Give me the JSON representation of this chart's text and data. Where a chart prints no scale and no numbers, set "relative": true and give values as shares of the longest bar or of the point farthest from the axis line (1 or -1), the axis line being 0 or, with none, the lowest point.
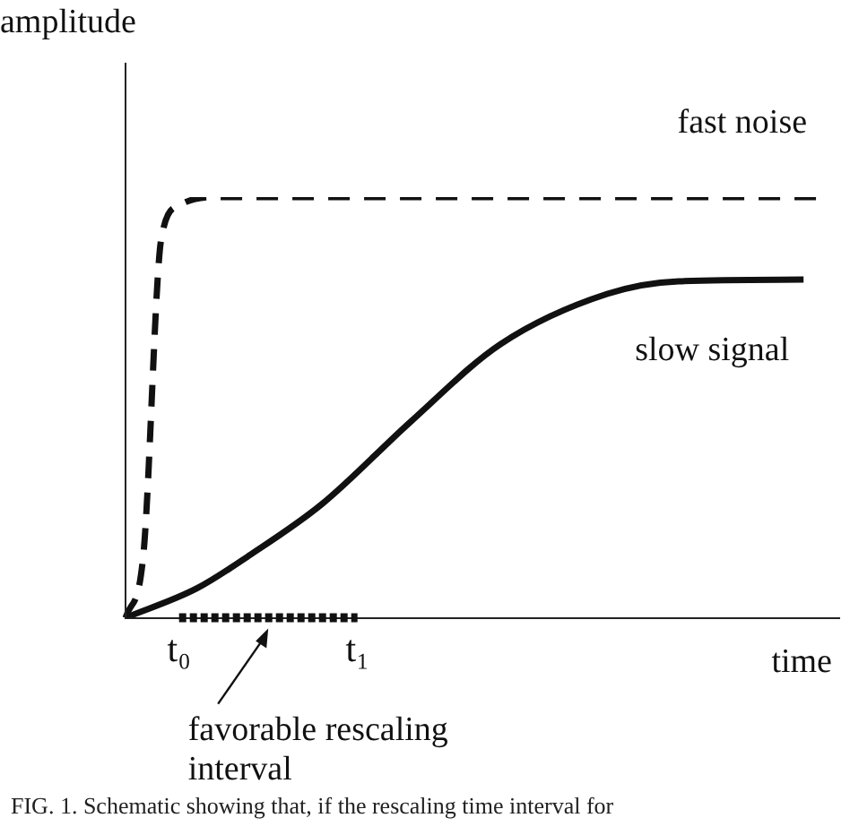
{
  "chart_data": {
    "type": "line",
    "relative": true,
    "ylabel": "amplitude",
    "xlabel": "time",
    "categories": [
      null,
      null,
      null,
      "t₀",
      null,
      null,
      null,
      null,
      null,
      null,
      null,
      null,
      null,
      "t₁",
      null,
      null,
      null,
      null,
      null,
      null,
      null,
      null,
      null,
      null,
      null,
      null,
      null,
      null,
      null,
      null,
      null,
      null,
      null,
      null,
      null,
      null,
      null,
      null,
      null,
      null,
      null
    ],
    "series": [
      {
        "name": "fast noise",
        "color": "#111111",
        "line_style": "dashed",
        "values": [
          0,
          0.15,
          0.9,
          0.98,
          null,
          1,
          null,
          null,
          null,
          null,
          null,
          null,
          null,
          null,
          null,
          null,
          null,
          null,
          null,
          null,
          null,
          null,
          null,
          null,
          null,
          null,
          null,
          null,
          null,
          null,
          null,
          null,
          null,
          null,
          null,
          null,
          null,
          null,
          null,
          1,
          null
        ]
      },
      {
        "name": "slow signal",
        "color": "#111111",
        "line_style": "solid",
        "values": [
          0,
          null,
          null,
          null,
          0.07,
          null,
          null,
          0.15,
          null,
          null,
          null,
          0.27,
          null,
          null,
          null,
          null,
          0.467,
          null,
          null,
          null,
          null,
          0.65,
          null,
          null,
          null,
          null,
          null,
          0.77,
          null,
          null,
          null,
          0.8,
          null,
          null,
          null,
          null,
          null,
          null,
          0.804,
          null,
          null
        ]
      }
    ],
    "annotations": [
      "favorable rescaling interval",
      "FIG. 1. Schematic showing that, if the rescaling time interval for"
    ],
    "legend": false,
    "grid": false,
    "marker": "none"
  }
}
